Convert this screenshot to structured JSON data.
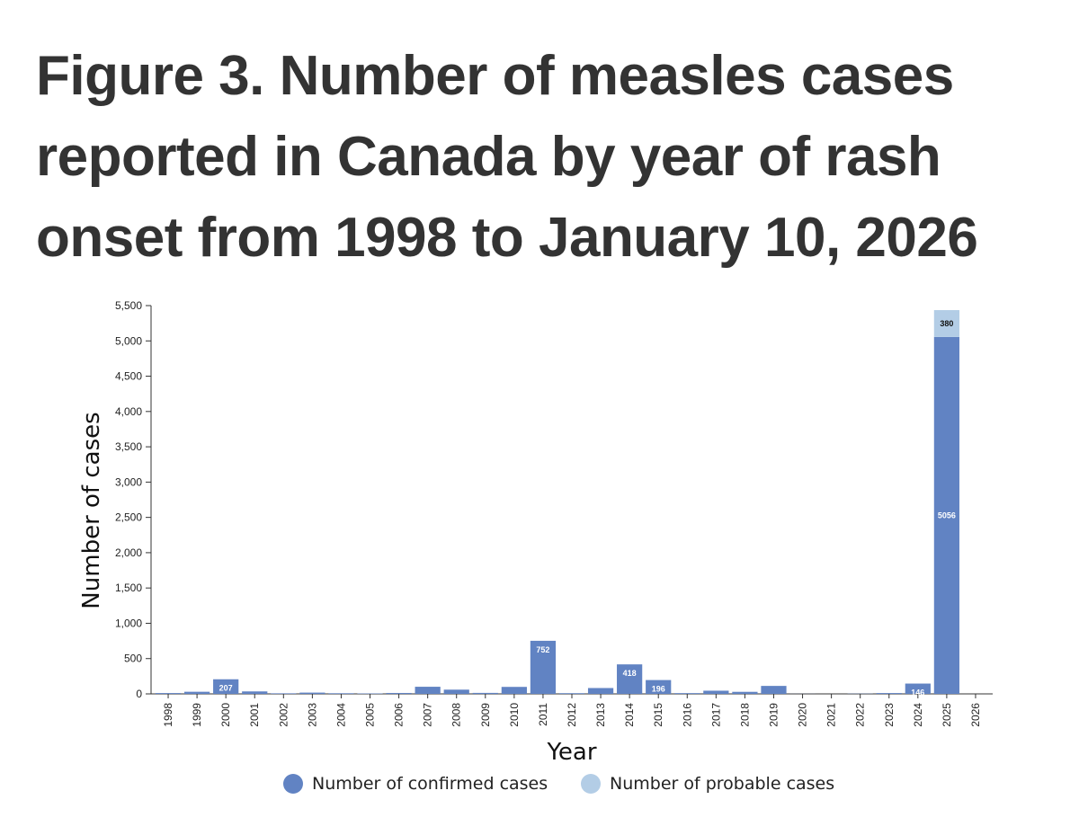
{
  "title": "Figure 3. Number of measles cases reported in Canada by year of rash onset from 1998 to January 10, 2026",
  "colors": {
    "confirmed": "#6183c3",
    "probable": "#b3cde6",
    "axis": "#333333"
  },
  "chart_data": {
    "type": "bar",
    "stacked": true,
    "xlabel": "Year",
    "ylabel": "Number of cases",
    "ylim": [
      0,
      5500
    ],
    "yticks": [
      0,
      500,
      1000,
      1500,
      2000,
      2500,
      3000,
      3500,
      4000,
      4500,
      5000,
      5500
    ],
    "ytick_labels": [
      "0",
      "500",
      "1,000",
      "1,500",
      "2,000",
      "2,500",
      "3,000",
      "3,500",
      "4,000",
      "4,500",
      "5,000",
      "5,500"
    ],
    "categories": [
      "1998",
      "1999",
      "2000",
      "2001",
      "2002",
      "2003",
      "2004",
      "2005",
      "2006",
      "2007",
      "2008",
      "2009",
      "2010",
      "2011",
      "2012",
      "2013",
      "2014",
      "2015",
      "2016",
      "2017",
      "2018",
      "2019",
      "2020",
      "2021",
      "2022",
      "2023",
      "2024",
      "2025",
      "2026"
    ],
    "series": [
      {
        "name": "Number of confirmed cases",
        "values": [
          12,
          30,
          207,
          35,
          8,
          18,
          9,
          6,
          13,
          101,
          60,
          14,
          99,
          752,
          10,
          83,
          418,
          196,
          11,
          45,
          29,
          113,
          1,
          0,
          3,
          12,
          146,
          5056,
          0
        ],
        "labels": {
          "2": "207",
          "13": "752",
          "16": "418",
          "17": "196",
          "26": "146",
          "27": "5056"
        }
      },
      {
        "name": "Number of probable cases",
        "values": [
          0,
          0,
          0,
          0,
          0,
          0,
          0,
          0,
          0,
          0,
          0,
          0,
          0,
          0,
          0,
          0,
          0,
          0,
          0,
          0,
          0,
          0,
          0,
          0,
          0,
          0,
          0,
          380,
          0
        ],
        "labels": {
          "27": "380"
        }
      }
    ],
    "legend": [
      "Number of confirmed cases",
      "Number of probable cases"
    ],
    "legend_position": "bottom"
  }
}
